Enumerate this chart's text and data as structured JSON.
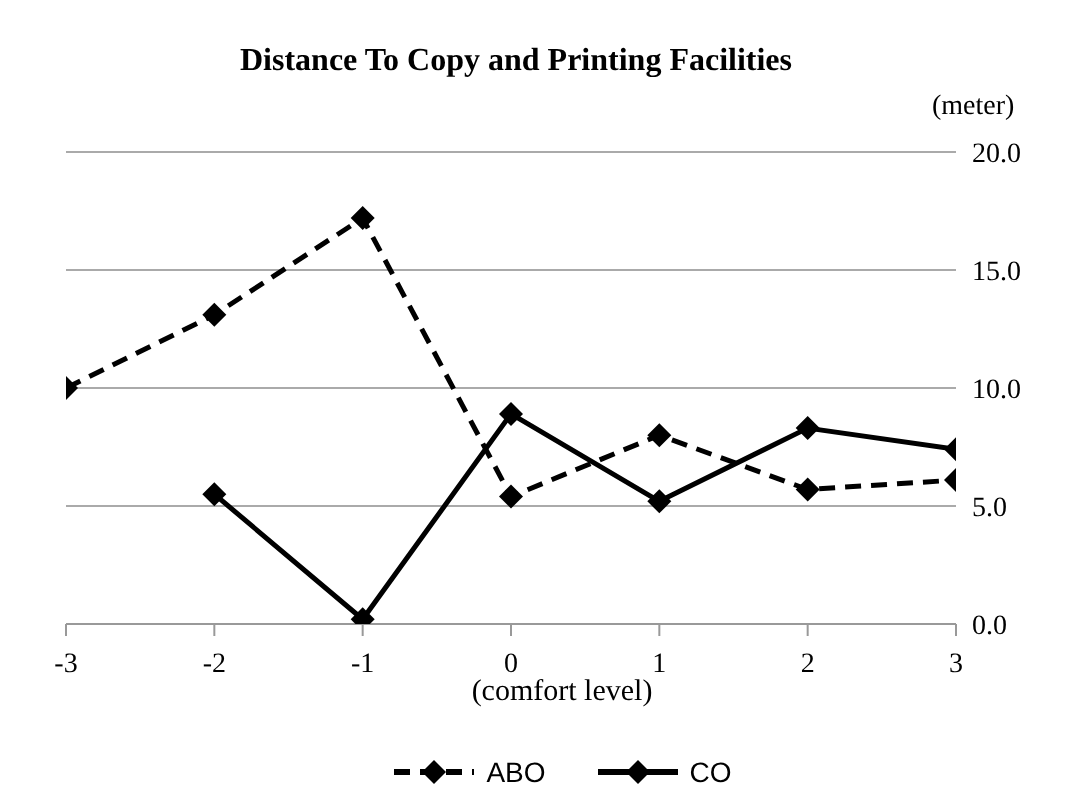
{
  "chart_data": {
    "type": "line",
    "title": "Distance To Copy and Printing Facilities",
    "xlabel": "(comfort level)",
    "ylabel": "(meter)",
    "x": [
      -3,
      -2,
      -1,
      0,
      1,
      2,
      3
    ],
    "xlim": [
      -3,
      3
    ],
    "xticks": [
      -3,
      -2,
      -1,
      0,
      1,
      2,
      3
    ],
    "ylim": [
      0,
      20
    ],
    "yticks": [
      {
        "value": 0,
        "label": "0.0"
      },
      {
        "value": 5,
        "label": "5.0"
      },
      {
        "value": 10,
        "label": "10.0"
      },
      {
        "value": 15,
        "label": "15.0"
      },
      {
        "value": 20,
        "label": "20.0"
      }
    ],
    "series": [
      {
        "name": "ABO",
        "color": "#000000",
        "line_style": "dashed",
        "values": [
          10.0,
          13.1,
          17.2,
          5.4,
          8.0,
          5.7,
          6.1
        ]
      },
      {
        "name": "CO",
        "color": "#000000",
        "line_style": "solid",
        "values": [
          null,
          5.5,
          0.2,
          8.9,
          5.2,
          8.3,
          7.4
        ]
      }
    ],
    "marker": "diamond",
    "grid": "y",
    "legend": "bottom"
  }
}
